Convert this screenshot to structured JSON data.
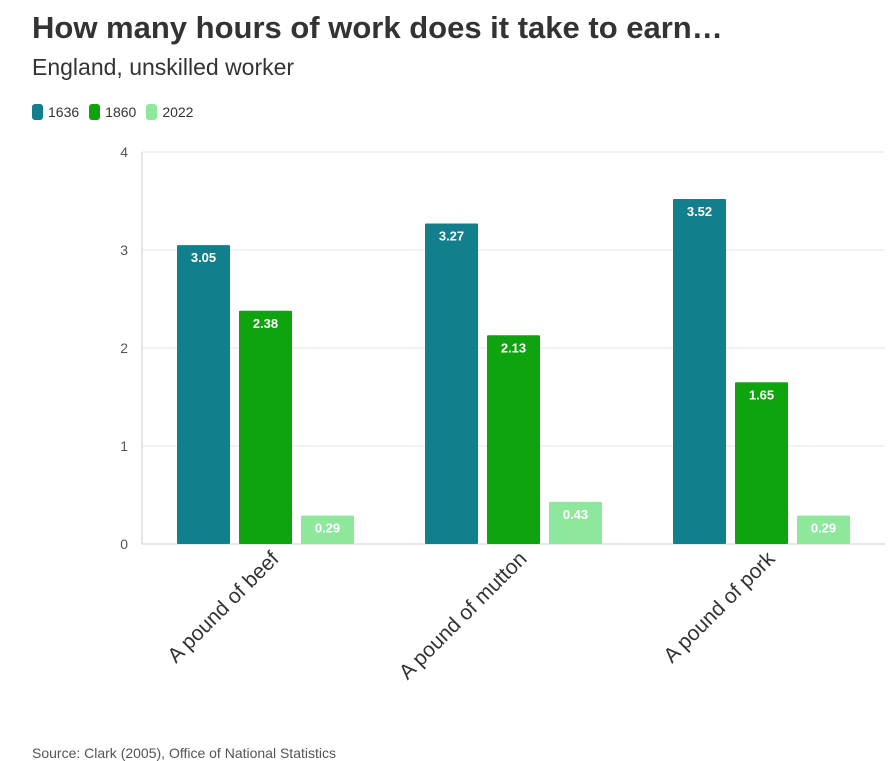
{
  "chart_data": {
    "type": "bar",
    "title": "How many hours of work does it take to earn…",
    "subtitle": "England, unskilled worker",
    "categories": [
      "A pound of beef",
      "A pound of mutton",
      "A pound of pork"
    ],
    "series": [
      {
        "name": "1636",
        "color": "#127f8d",
        "values": [
          3.05,
          3.27,
          3.52
        ]
      },
      {
        "name": "1860",
        "color": "#0ea40e",
        "values": [
          2.38,
          2.13,
          1.65
        ]
      },
      {
        "name": "2022",
        "color": "#8ee89b",
        "values": [
          0.29,
          0.43,
          0.29
        ]
      }
    ],
    "yticks": [
      "0",
      "1",
      "2",
      "3",
      "4"
    ],
    "ylim": [
      0,
      4
    ],
    "grid": true,
    "legend_position": "top-left",
    "source": "Source: Clark (2005), Office of National Statistics"
  }
}
